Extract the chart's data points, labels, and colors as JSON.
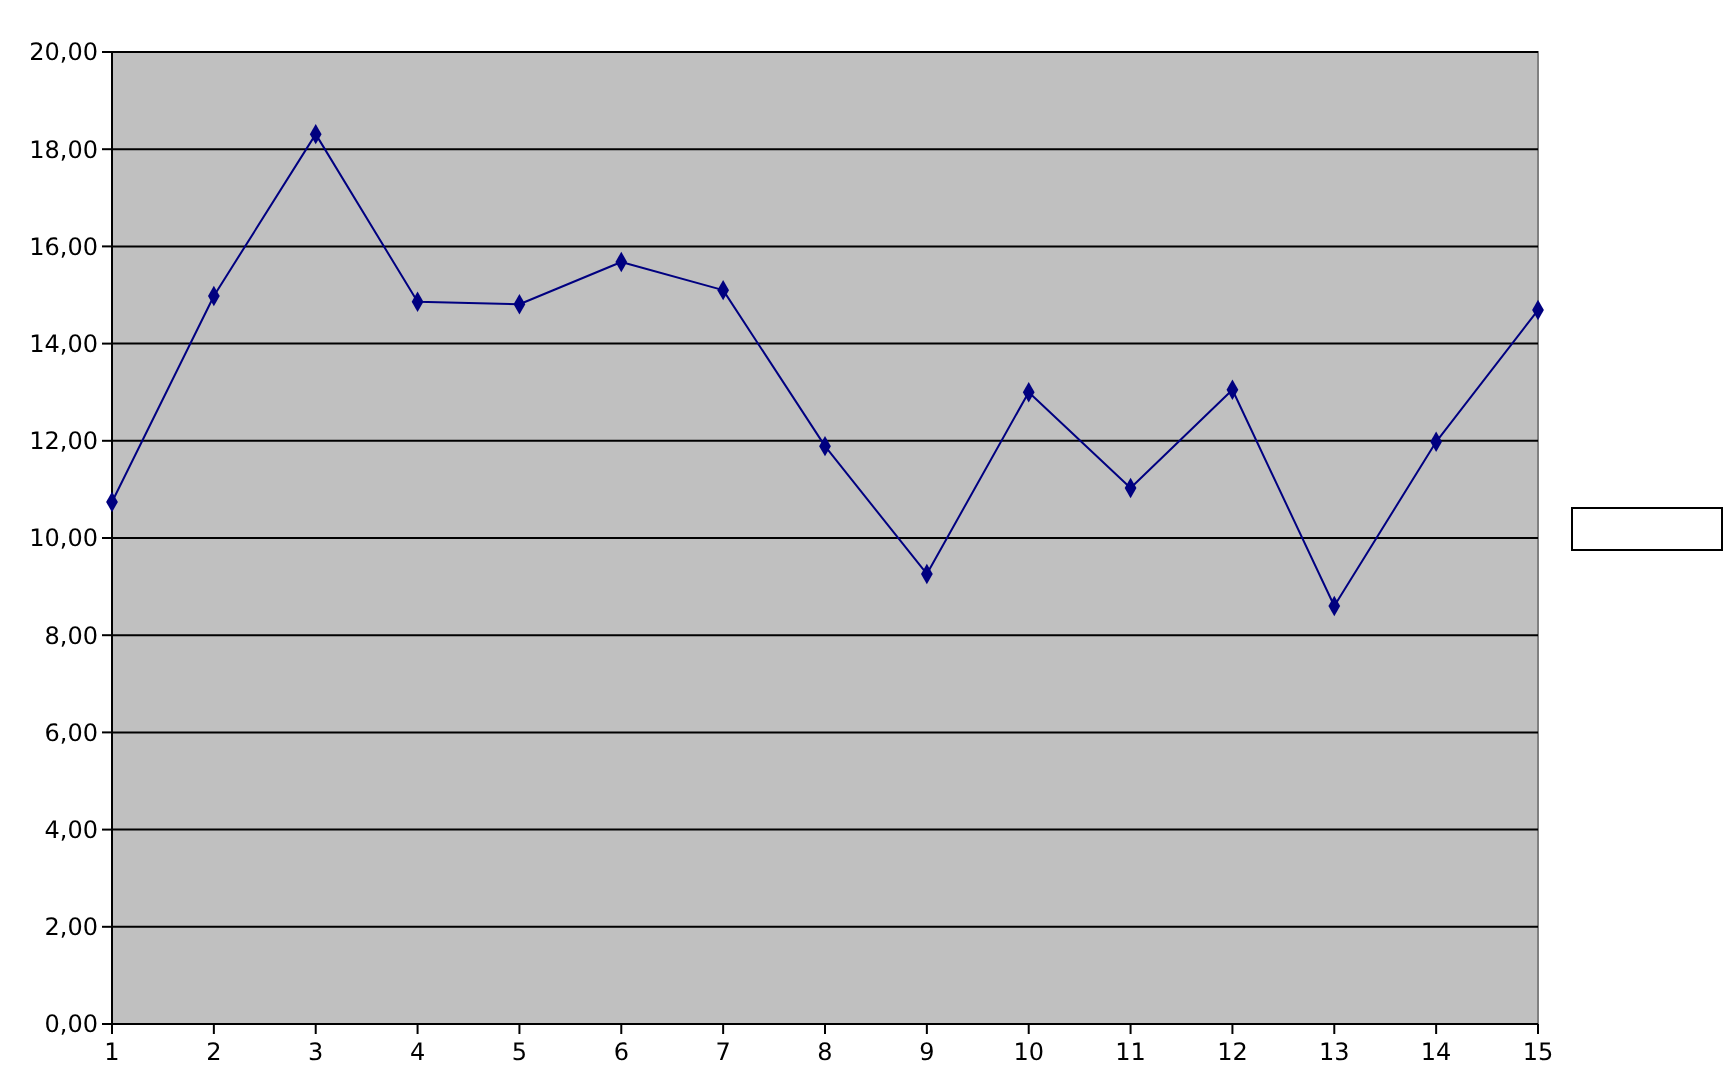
{
  "chart_data": {
    "type": "line",
    "x": [
      1,
      2,
      3,
      4,
      5,
      6,
      7,
      8,
      9,
      10,
      11,
      12,
      13,
      14,
      15
    ],
    "series": [
      {
        "color": "#000080",
        "values": [
          10.74,
          14.98,
          18.31,
          14.86,
          14.81,
          15.68,
          15.1,
          11.89,
          9.26,
          13.0,
          11.03,
          13.05,
          8.6,
          11.98,
          14.69
        ]
      }
    ],
    "xlim": [
      1,
      15
    ],
    "xticks": [
      1,
      2,
      3,
      4,
      5,
      6,
      7,
      8,
      9,
      10,
      11,
      12,
      13,
      14,
      15
    ],
    "ylim": [
      0,
      20
    ],
    "yticks": [
      {
        "value": 0,
        "label": "0,00"
      },
      {
        "value": 2,
        "label": "2,00"
      },
      {
        "value": 4,
        "label": "4,00"
      },
      {
        "value": 6,
        "label": "6,00"
      },
      {
        "value": 8,
        "label": "8,00"
      },
      {
        "value": 10,
        "label": "10,00"
      },
      {
        "value": 12,
        "label": "12,00"
      },
      {
        "value": 14,
        "label": "14,00"
      },
      {
        "value": 16,
        "label": "16,00"
      },
      {
        "value": 18,
        "label": "18,00"
      },
      {
        "value": 20,
        "label": "20,00"
      }
    ],
    "grid": "y",
    "marker": "diamond",
    "line_style": "solid"
  }
}
